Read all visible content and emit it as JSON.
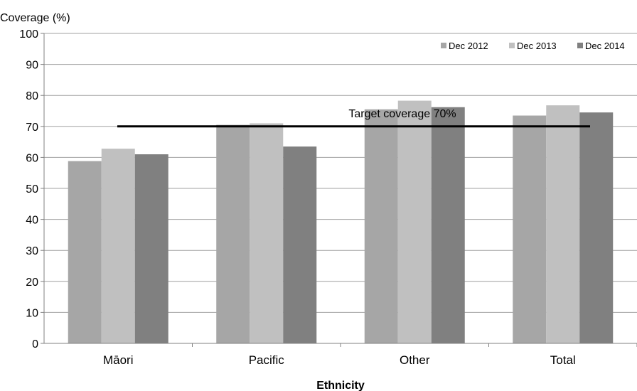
{
  "chart_data": {
    "type": "bar",
    "ylabel": "Coverage (%)",
    "xlabel": "Ethnicity",
    "ylim": [
      0,
      100
    ],
    "yticks": [
      0,
      10,
      20,
      30,
      40,
      50,
      60,
      70,
      80,
      90,
      100
    ],
    "grid": true,
    "legend_position": "top-right",
    "categories": [
      "Māori",
      "Pacific",
      "Other",
      "Total"
    ],
    "series": [
      {
        "name": "Dec 2012",
        "color": "#a6a6a6",
        "values": [
          58.8,
          70.5,
          75.5,
          73.5
        ]
      },
      {
        "name": "Dec 2013",
        "color": "#c0c0c0",
        "values": [
          62.8,
          71.0,
          78.3,
          76.8
        ]
      },
      {
        "name": "Dec 2014",
        "color": "#808080",
        "values": [
          61.0,
          63.5,
          76.2,
          74.5
        ]
      }
    ],
    "target": {
      "value": 70,
      "label": "Target coverage 70%"
    }
  }
}
